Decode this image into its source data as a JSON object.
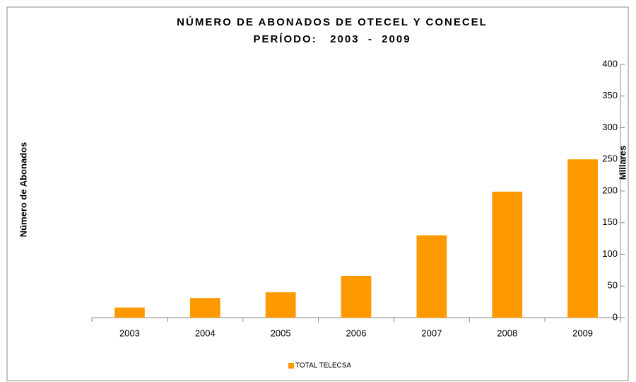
{
  "chart_data": {
    "type": "bar",
    "title": "NÚMERO DE ABONADOS DE OTECEL Y CONECEL",
    "subtitle": "PERÍODO:   2003  -  2009",
    "y_axis_label": "Número de Abonados",
    "y_unit_label": "Millares",
    "categories": [
      "2003",
      "2004",
      "2005",
      "2006",
      "2007",
      "2008",
      "2009"
    ],
    "series": [
      {
        "name": "TOTAL TELECSA",
        "color": "#ff9900",
        "values": [
          16,
          31,
          40,
          66,
          130,
          199,
          250
        ]
      }
    ],
    "ylim": [
      0,
      400
    ],
    "yticks": [
      0,
      50,
      100,
      150,
      200,
      250,
      300,
      350,
      400
    ],
    "y_axis_side": "right",
    "grid": false,
    "legend": "bottom"
  }
}
